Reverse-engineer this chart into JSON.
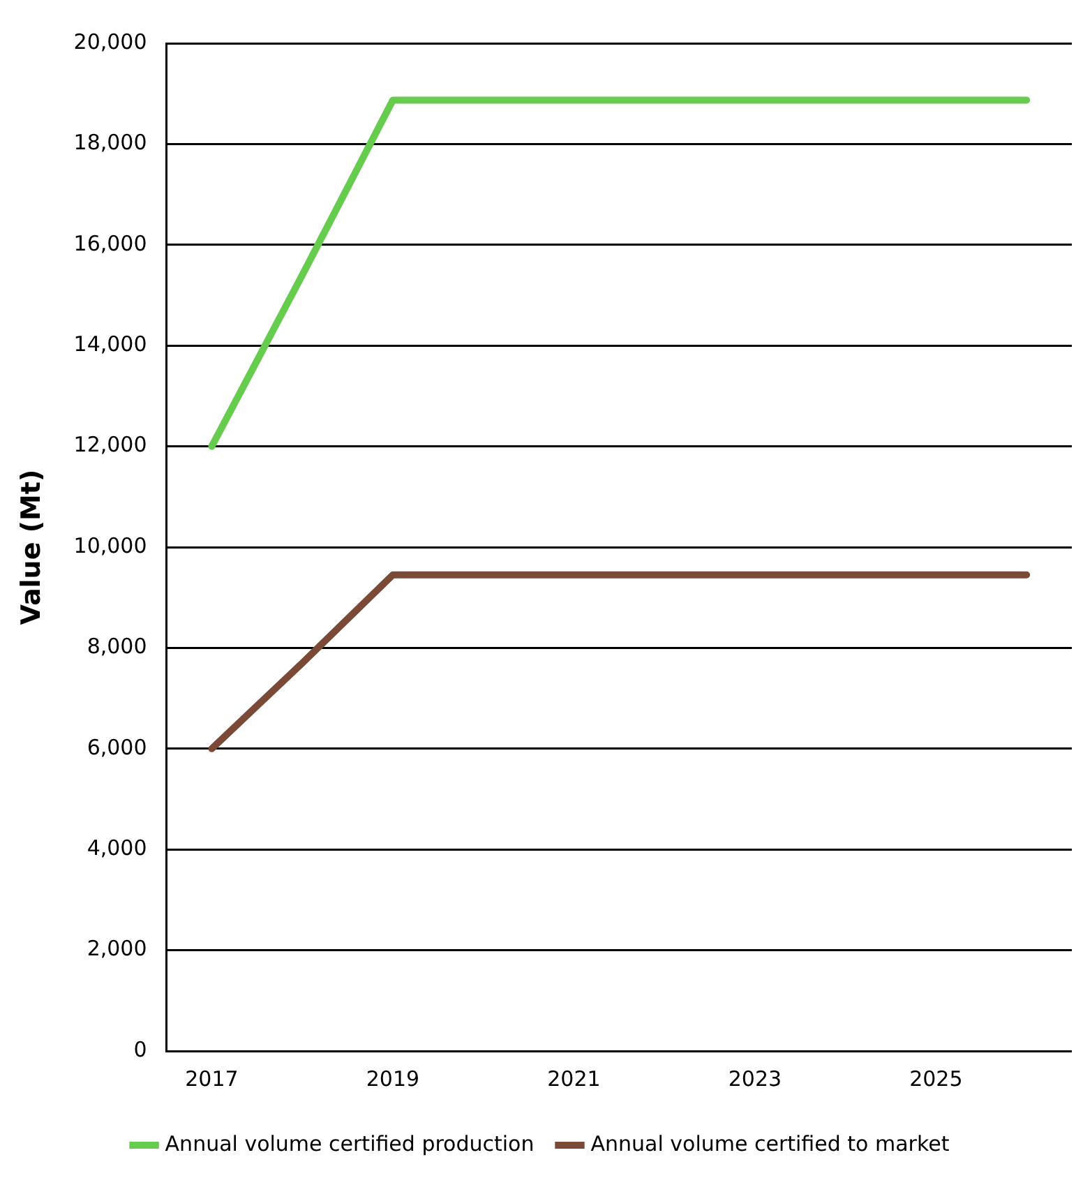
{
  "chart_data": {
    "type": "line",
    "ylabel": "Value (Mt)",
    "categories": [
      "2017",
      null,
      "2019",
      null,
      "2021",
      null,
      "2023",
      null,
      "2025",
      null
    ],
    "series": [
      {
        "name": "Annual volume certified production",
        "color": "#66cc4d",
        "values": [
          12000,
          15400,
          18870,
          18870,
          18870,
          18870,
          18870,
          18870,
          18870,
          18870
        ]
      },
      {
        "name": "Annual volume certified to market",
        "color": "#7b4a36",
        "values": [
          6000,
          7700,
          9450,
          9450,
          9450,
          9450,
          9450,
          9450,
          9450,
          9450
        ]
      }
    ],
    "ylim": [
      0,
      20000
    ],
    "yticks": [
      {
        "value": 0,
        "label": "0"
      },
      {
        "value": 2000,
        "label": "2,000"
      },
      {
        "value": 4000,
        "label": "4,000"
      },
      {
        "value": 6000,
        "label": "6,000"
      },
      {
        "value": 8000,
        "label": "8,000"
      },
      {
        "value": 10000,
        "label": "10,000"
      },
      {
        "value": 12000,
        "label": "12,000"
      },
      {
        "value": 14000,
        "label": "14,000"
      },
      {
        "value": 16000,
        "label": "16,000"
      },
      {
        "value": 18000,
        "label": "18,000"
      },
      {
        "value": 20000,
        "label": "20,000"
      }
    ],
    "grid": "y",
    "legend": "bottom",
    "marker": "none",
    "line_style": "solid"
  }
}
